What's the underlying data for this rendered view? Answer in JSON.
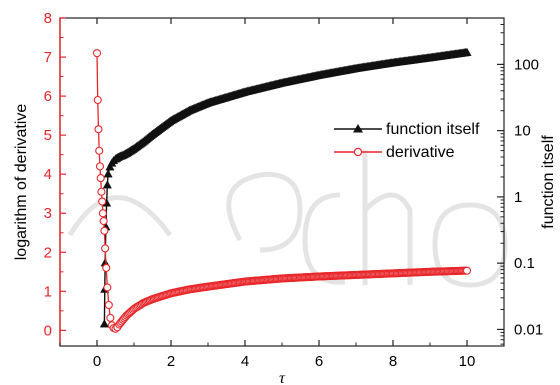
{
  "chart_data": {
    "type": "line",
    "xlabel": "τ",
    "ylabel": "logarithm of derivative",
    "y2label": "function itself",
    "xlim": [
      -1,
      11
    ],
    "ylim": [
      -0.4,
      8
    ],
    "y2lim_log10": [
      -2.25,
      2.7
    ],
    "xticks": [
      "0",
      "2",
      "4",
      "6",
      "8",
      "10"
    ],
    "yticks": [
      "0",
      "1",
      "2",
      "3",
      "4",
      "5",
      "6",
      "7",
      "8"
    ],
    "y2ticks": [
      "0.01",
      "0.1",
      "1",
      "10",
      "100"
    ],
    "grid": false,
    "legend_position": "center-right",
    "legend": [
      {
        "label": "function itself",
        "marker": "filled-triangle",
        "color": "#111111"
      },
      {
        "label": "derivative",
        "marker": "open-circle",
        "color": "#e8262a"
      }
    ],
    "series": [
      {
        "name": "function itself",
        "axis": "right",
        "scale": "log",
        "color": "#111111",
        "marker": "filled-triangle",
        "x": [
          0.2,
          0.21,
          0.22,
          0.24,
          0.26,
          0.28,
          0.3,
          0.35,
          0.4,
          0.45,
          0.5,
          0.6,
          0.7,
          0.8,
          1.0,
          1.25,
          1.5,
          2.0,
          2.5,
          3.0,
          4.0,
          5.0,
          6.0,
          7.0,
          8.0,
          9.0,
          10.0
        ],
        "y": [
          0.012,
          0.04,
          0.1,
          0.35,
          0.8,
          1.5,
          2.2,
          2.8,
          3.2,
          3.5,
          3.7,
          4.0,
          4.2,
          4.5,
          5.3,
          6.7,
          8.7,
          14,
          20,
          26,
          38,
          52,
          68,
          86,
          105,
          125,
          150
        ]
      },
      {
        "name": "derivative",
        "axis": "left",
        "scale": "linear",
        "color": "#e8262a",
        "marker": "open-circle",
        "x": [
          0.0,
          0.02,
          0.04,
          0.06,
          0.08,
          0.1,
          0.12,
          0.14,
          0.16,
          0.18,
          0.2,
          0.22,
          0.25,
          0.28,
          0.32,
          0.36,
          0.4,
          0.45,
          0.5,
          0.55,
          0.6,
          0.7,
          0.8,
          1.0,
          1.25,
          1.5,
          2.0,
          2.5,
          3.0,
          4.0,
          5.0,
          6.0,
          7.0,
          8.0,
          9.0,
          10.0
        ],
        "y": [
          7.1,
          5.9,
          5.15,
          4.6,
          4.2,
          3.9,
          3.55,
          3.3,
          3.0,
          2.8,
          2.55,
          2.1,
          1.6,
          1.1,
          0.65,
          0.32,
          0.13,
          0.06,
          0.04,
          0.08,
          0.15,
          0.27,
          0.38,
          0.55,
          0.7,
          0.8,
          0.95,
          1.05,
          1.12,
          1.25,
          1.33,
          1.38,
          1.42,
          1.46,
          1.5,
          1.53
        ]
      }
    ]
  }
}
